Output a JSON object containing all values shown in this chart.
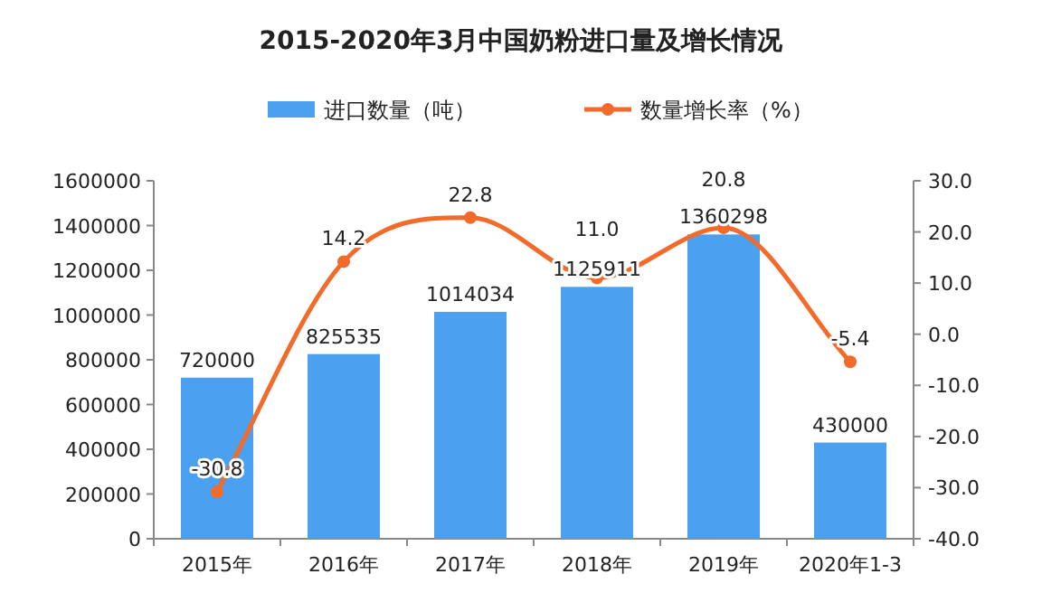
{
  "chart_data": {
    "type": "bar",
    "title": "2015-2020年3月中国奶粉进口量及增长情况",
    "categories": [
      "2015年",
      "2016年",
      "2017年",
      "2018年",
      "2019年",
      "2020年1-3"
    ],
    "series": [
      {
        "name": "进口数量（吨）",
        "color": "#4ba0f0",
        "values": [
          720000,
          825535,
          1014034,
          1125911,
          1360298,
          430000
        ],
        "value_labels": [
          "720000",
          "825535",
          "1014034",
          "1125911",
          "1360298",
          "430000"
        ]
      },
      {
        "name": "数量增长率（%）",
        "type": "line",
        "axis": "y2",
        "color": "#f26b2a",
        "values": [
          -30.8,
          14.2,
          22.8,
          11.0,
          20.8,
          -5.4
        ],
        "value_labels": [
          "-30.8",
          "14.2",
          "22.8",
          "11.0",
          "20.8",
          "-5.4"
        ],
        "marker": "circle",
        "line_style": "solid"
      }
    ],
    "ylim": [
      0,
      1600000
    ],
    "yticks": [
      0,
      200000,
      400000,
      600000,
      800000,
      1000000,
      1200000,
      1400000,
      1600000
    ],
    "y2lim": [
      -40,
      30
    ],
    "y2ticks": [
      {
        "value": 30,
        "label": "30.0"
      },
      {
        "value": 20,
        "label": "20.0"
      },
      {
        "value": 10,
        "label": "10.0"
      },
      {
        "value": 0,
        "label": "0.0"
      },
      {
        "value": -10,
        "label": "-10.0"
      },
      {
        "value": -20,
        "label": "-20.0"
      },
      {
        "value": -30,
        "label": "-30.0"
      },
      {
        "value": -40,
        "label": "-40.0"
      }
    ],
    "grid": false,
    "legend": "top"
  }
}
